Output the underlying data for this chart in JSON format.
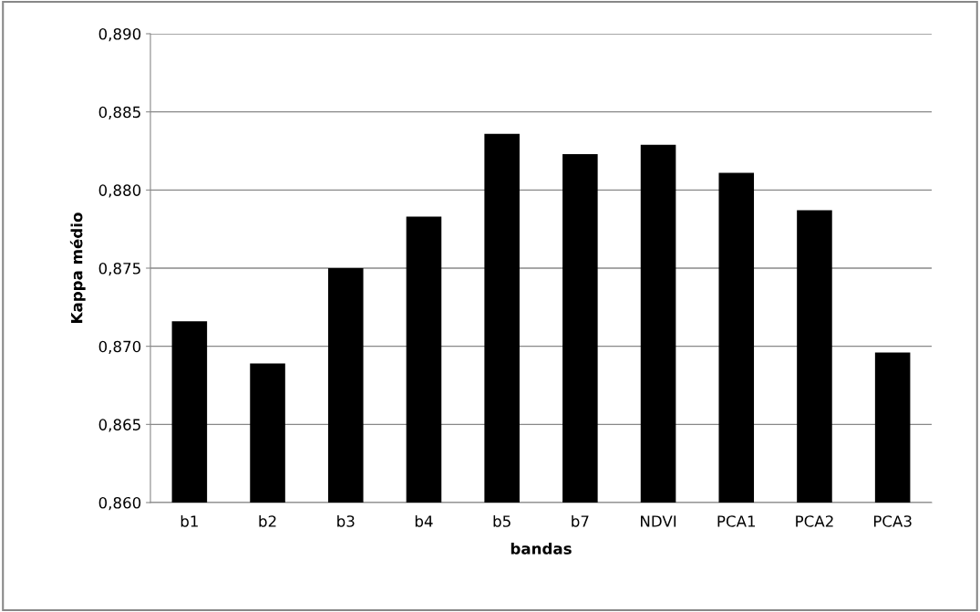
{
  "chart_data": {
    "type": "bar",
    "xlabel": "bandas",
    "ylabel": "Kappa médio",
    "categories": [
      "b1",
      "b2",
      "b3",
      "b4",
      "b5",
      "b7",
      "NDVI",
      "PCA1",
      "PCA2",
      "PCA3"
    ],
    "values": [
      0.8716,
      0.8689,
      0.875,
      0.8783,
      0.8836,
      0.8823,
      0.8829,
      0.8811,
      0.8787,
      0.8696
    ],
    "color": "#000000",
    "ylim": [
      0.86,
      0.89
    ],
    "yticks": [
      {
        "value": 0.86,
        "label": "0,860"
      },
      {
        "value": 0.865,
        "label": "0,865"
      },
      {
        "value": 0.87,
        "label": "0,870"
      },
      {
        "value": 0.875,
        "label": "0,875"
      },
      {
        "value": 0.88,
        "label": "0,880"
      },
      {
        "value": 0.885,
        "label": "0,885"
      },
      {
        "value": 0.89,
        "label": "0,890"
      }
    ],
    "grid": "y"
  }
}
